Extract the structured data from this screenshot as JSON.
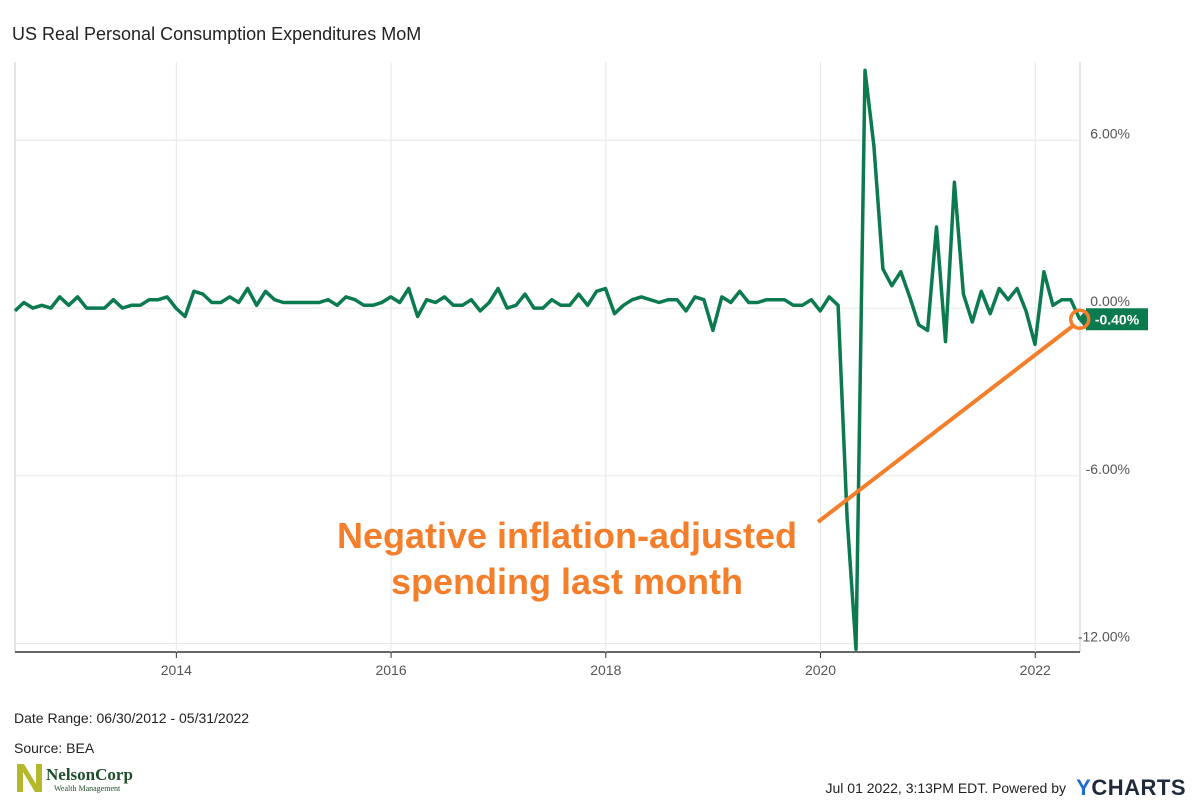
{
  "title": "US Real Personal Consumption Expenditures MoM",
  "footer": {
    "date_range": "Date Range: 06/30/2012 - 05/31/2022",
    "source": "Source: BEA",
    "timestamp": "Jul 01 2022, 3:13PM EDT.",
    "powered_by": "Powered by",
    "brand_y": "Y",
    "brand_rest": "CHARTS",
    "logo_name": "NelsonCorp",
    "logo_sub": "Wealth Management"
  },
  "annotation": {
    "lines": [
      "Negative inflation-adjusted",
      "spending last month"
    ],
    "color": "#f47e2a"
  },
  "colors": {
    "series": "#0b7a4e",
    "grid": "#e6e6e6",
    "axis": "#333333"
  },
  "chart_data": {
    "type": "line",
    "title": "US Real Personal Consumption Expenditures MoM",
    "x_ticks": [
      "2014",
      "2016",
      "2018",
      "2020",
      "2022"
    ],
    "y_ticks": [
      6,
      0,
      -6,
      -12
    ],
    "y_tick_labels": [
      "6.00%",
      "0.00%",
      "-6.00%",
      "-12.00%"
    ],
    "xlim": [
      "2012-06-30",
      "2022-05-31"
    ],
    "ylim": [
      -12.3,
      8.8
    ],
    "last_value_label": "-0.40%",
    "series": [
      {
        "start": "2012-06",
        "values": [
          -0.1,
          0.2,
          0.0,
          0.1,
          0.0,
          0.4,
          0.1,
          0.4,
          0.0,
          0.0,
          0.0,
          0.3,
          0.0,
          0.1,
          0.1,
          0.3,
          0.3,
          0.4,
          0.0,
          -0.3,
          0.6,
          0.5,
          0.2,
          0.2,
          0.4,
          0.2,
          0.7,
          0.1,
          0.6,
          0.3,
          0.2,
          0.2,
          0.2,
          0.2,
          0.2,
          0.3,
          0.1,
          0.4,
          0.3,
          0.1,
          0.1,
          0.2,
          0.4,
          0.2,
          0.7,
          -0.3,
          0.3,
          0.2,
          0.4,
          0.1,
          0.1,
          0.3,
          -0.1,
          0.2,
          0.7,
          0.0,
          0.1,
          0.5,
          0.0,
          0.0,
          0.3,
          0.1,
          0.1,
          0.5,
          0.1,
          0.6,
          0.7,
          -0.2,
          0.1,
          0.3,
          0.4,
          0.3,
          0.2,
          0.3,
          0.3,
          -0.1,
          0.4,
          0.3,
          -0.8,
          0.4,
          0.2,
          0.6,
          0.2,
          0.2,
          0.3,
          0.3,
          0.3,
          0.1,
          0.1,
          0.3,
          -0.1,
          0.4,
          0.1,
          -7.5,
          -12.2,
          8.5,
          5.8,
          1.4,
          0.8,
          1.3,
          0.4,
          -0.6,
          -0.8,
          2.9,
          -1.2,
          4.5,
          0.5,
          -0.5,
          0.6,
          -0.2,
          0.7,
          0.3,
          0.7,
          -0.1,
          -1.3,
          1.3,
          0.1,
          0.3,
          0.3,
          -0.4
        ]
      }
    ]
  }
}
